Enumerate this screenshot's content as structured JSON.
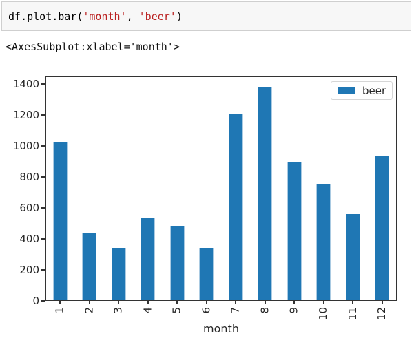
{
  "code_cell": {
    "tokens": [
      {
        "text": "df.plot.bar(",
        "type": "plain"
      },
      {
        "text": "'month'",
        "type": "string"
      },
      {
        "text": ", ",
        "type": "plain"
      },
      {
        "text": "'beer'",
        "type": "string"
      },
      {
        "text": ")",
        "type": "plain"
      }
    ]
  },
  "output_text": "<AxesSubplot:xlabel='month'>",
  "chart_data": {
    "type": "bar",
    "categories": [
      "1",
      "2",
      "3",
      "4",
      "5",
      "6",
      "7",
      "8",
      "9",
      "10",
      "11",
      "12"
    ],
    "values": [
      1025,
      435,
      340,
      535,
      480,
      340,
      1205,
      1380,
      900,
      755,
      560,
      940
    ],
    "series_name": "beer",
    "title": "",
    "xlabel": "month",
    "ylabel": "",
    "ylim": [
      0,
      1449
    ],
    "yticks": [
      0,
      200,
      400,
      600,
      800,
      1000,
      1200,
      1400
    ],
    "bar_width_fraction": 0.5,
    "grid": false,
    "legend": {
      "label": "beer",
      "position": "upper right"
    },
    "colors": {
      "bar": "#1f77b4",
      "string_literal": "#ba2121",
      "axes_spine": "#333333",
      "text": "#262626",
      "cell_background": "#f7f7f7",
      "cell_border": "#cfcfcf"
    }
  }
}
